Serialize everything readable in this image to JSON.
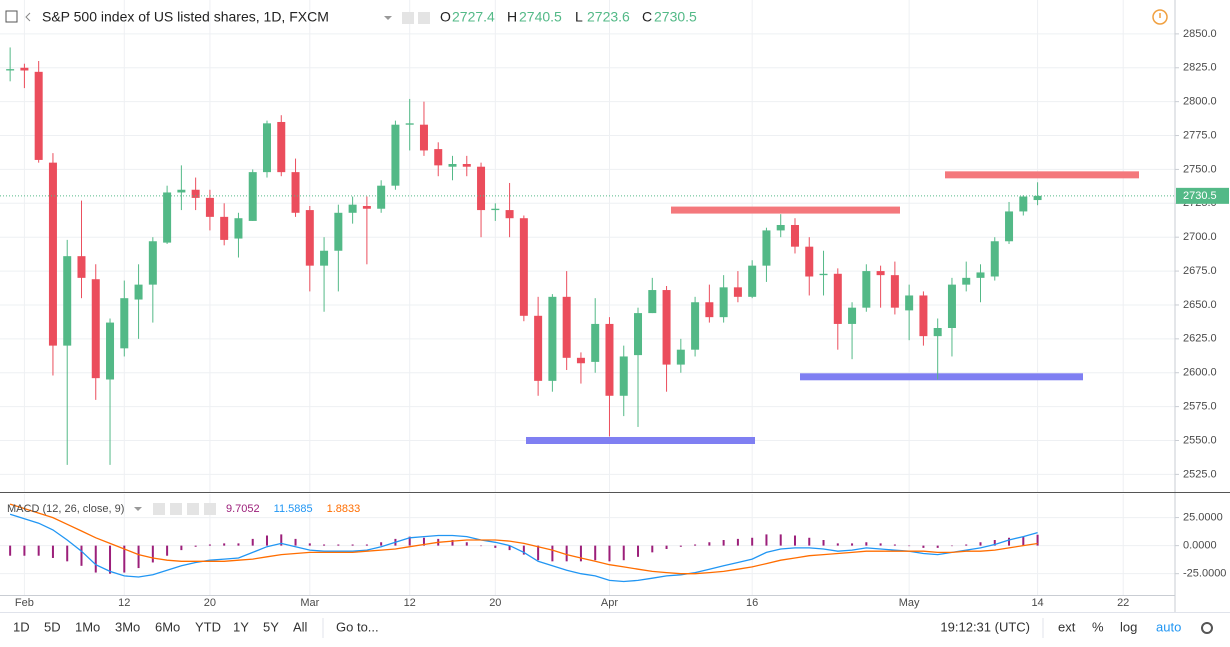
{
  "header": {
    "title": "S&P 500 index of US listed shares, 1D, FXCM",
    "ohlc_labels": [
      "O",
      "H",
      "L",
      "C"
    ],
    "macd_label": "MACD (12, 26, close, 9)"
  },
  "toolbar": {
    "timeframes": [
      "1D",
      "5D",
      "1Mo",
      "3Mo",
      "6Mo",
      "YTD",
      "1Y",
      "5Y",
      "All"
    ],
    "goto": "Go to...",
    "clock": "19:12:31 (UTC)",
    "options": [
      "ext",
      "%",
      "log",
      "auto"
    ]
  },
  "chart_data": [
    {
      "type": "candlestick",
      "up_color": "#53b987",
      "down_color": "#eb4d5c",
      "open": [
        2823,
        2825,
        2822,
        2755,
        2620,
        2686,
        2669,
        2595,
        2618,
        2654,
        2665,
        2696,
        2733,
        2735,
        2729,
        2715,
        2699,
        2712,
        2748,
        2785,
        2748,
        2720,
        2679,
        2690,
        2718,
        2723,
        2721,
        2738,
        2783,
        2783,
        2765,
        2752,
        2754,
        2752,
        2720,
        2720,
        2714,
        2642,
        2594,
        2656,
        2611,
        2608,
        2636,
        2583,
        2613,
        2644,
        2661,
        2606,
        2617,
        2652,
        2641,
        2663,
        2656,
        2679,
        2705,
        2709,
        2693,
        2672,
        2673,
        2636,
        2648,
        2675,
        2672,
        2646,
        2657,
        2627,
        2633,
        2665,
        2670,
        2671,
        2697,
        2719,
        2727.4,
        null,
        null,
        null,
        null,
        null,
        null,
        null,
        null,
        null
      ],
      "high": [
        2840,
        2828,
        2830,
        2762,
        2698,
        2727,
        2680,
        2640,
        2668,
        2680,
        2700,
        2738,
        2753,
        2744,
        2735,
        2725,
        2718,
        2750,
        2786,
        2790,
        2758,
        2723,
        2700,
        2724,
        2730,
        2730,
        2742,
        2786,
        2802,
        2800,
        2770,
        2760,
        2760,
        2755,
        2725,
        2740,
        2716,
        2656,
        2658,
        2675,
        2615,
        2655,
        2641,
        2620,
        2648,
        2670,
        2664,
        2625,
        2656,
        2665,
        2672,
        2675,
        2683,
        2707,
        2717,
        2714,
        2700,
        2690,
        2677,
        2652,
        2680,
        2679,
        2682,
        2665,
        2660,
        2640,
        2670,
        2682,
        2680,
        2700,
        2726,
        2731,
        2740.5,
        null,
        null,
        null,
        null,
        null,
        null,
        null,
        null,
        null
      ],
      "low": [
        2815,
        2810,
        2755,
        2598,
        2532,
        2655,
        2580,
        2532,
        2612,
        2625,
        2637,
        2695,
        2720,
        2720,
        2705,
        2694,
        2685,
        2712,
        2744,
        2745,
        2715,
        2660,
        2645,
        2660,
        2710,
        2680,
        2718,
        2735,
        2764,
        2760,
        2745,
        2742,
        2745,
        2700,
        2712,
        2700,
        2638,
        2583,
        2586,
        2602,
        2592,
        2600,
        2553,
        2568,
        2560,
        2644,
        2586,
        2600,
        2612,
        2637,
        2637,
        2652,
        2655,
        2667,
        2700,
        2688,
        2657,
        2657,
        2617,
        2610,
        2645,
        2648,
        2643,
        2624,
        2620,
        2595,
        2612,
        2660,
        2652,
        2668,
        2695,
        2716,
        2723.6,
        null,
        null,
        null,
        null,
        null,
        null,
        null,
        null,
        null
      ],
      "close": [
        2824,
        2823,
        2757,
        2620,
        2686,
        2670,
        2596,
        2637,
        2655,
        2665,
        2697,
        2733,
        2735,
        2729,
        2715,
        2698,
        2714,
        2748,
        2784,
        2748,
        2718,
        2679,
        2690,
        2718,
        2724,
        2721,
        2738,
        2783,
        2784,
        2764,
        2753,
        2754,
        2752,
        2720,
        2721,
        2714,
        2642,
        2594,
        2656,
        2611,
        2607,
        2636,
        2583,
        2612,
        2644,
        2661,
        2606,
        2617,
        2652,
        2641,
        2663,
        2656,
        2679,
        2705,
        2709,
        2693,
        2671,
        2673,
        2636,
        2648,
        2675,
        2672,
        2648,
        2657,
        2627,
        2633,
        2665,
        2670,
        2674,
        2697,
        2719,
        2730,
        2730.5,
        null,
        null,
        null,
        null,
        null,
        null,
        null,
        null,
        null
      ],
      "ylim": [
        2512,
        2875
      ],
      "yticks": [
        {
          "value": 2525,
          "label": "2525.0"
        },
        {
          "value": 2550,
          "label": "2550.0"
        },
        {
          "value": 2575,
          "label": "2575.0"
        },
        {
          "value": 2600,
          "label": "2600.0"
        },
        {
          "value": 2625,
          "label": "2625.0"
        },
        {
          "value": 2650,
          "label": "2650.0"
        },
        {
          "value": 2675,
          "label": "2675.0"
        },
        {
          "value": 2700,
          "label": "2700.0"
        },
        {
          "value": 2725,
          "label": "2725.0"
        },
        {
          "value": 2750,
          "label": "2750.0"
        },
        {
          "value": 2775,
          "label": "2775.0"
        },
        {
          "value": 2800,
          "label": "2800.0"
        },
        {
          "value": 2825,
          "label": "2825.0"
        },
        {
          "value": 2850,
          "label": "2850.0"
        }
      ],
      "levels": [
        {
          "value": 2746,
          "color": "#f4787c"
        },
        {
          "value": 2720,
          "color": "#f4787c"
        },
        {
          "value": 2597,
          "color": "#7f7ff2"
        },
        {
          "value": 2550,
          "color": "#7f7ff2"
        }
      ],
      "grid": true
    },
    {
      "type": "macd",
      "categories": [
        null,
        "Feb",
        null,
        null,
        null,
        null,
        null,
        null,
        "12",
        null,
        null,
        null,
        null,
        null,
        "20",
        null,
        null,
        null,
        null,
        null,
        null,
        "Mar",
        null,
        null,
        null,
        null,
        null,
        null,
        "12",
        null,
        null,
        null,
        null,
        null,
        "20",
        null,
        null,
        null,
        null,
        null,
        null,
        null,
        "Apr",
        null,
        null,
        null,
        null,
        null,
        null,
        null,
        null,
        null,
        "16",
        null,
        null,
        null,
        null,
        null,
        null,
        null,
        null,
        null,
        null,
        "May",
        null,
        null,
        null,
        null,
        null,
        null,
        null,
        null,
        "14",
        null,
        null,
        null,
        null,
        null,
        "22",
        null,
        null,
        null
      ],
      "series": [
        {
          "style": "histogram",
          "color": "#9c1f7a",
          "values": [
            -9,
            -9,
            -9,
            -11,
            -14,
            -18,
            -24,
            -25,
            -24,
            -20,
            -15,
            -9,
            -4,
            -1,
            1,
            2,
            2,
            6,
            9,
            10,
            6,
            2,
            1,
            1,
            1,
            1,
            3,
            6,
            8,
            7,
            6,
            5,
            3,
            0,
            -2,
            -4,
            -8,
            -13,
            -14,
            -14,
            -14,
            -13,
            -14,
            -13,
            -10,
            -6,
            -3,
            -1,
            1,
            3,
            5,
            6,
            7,
            10,
            10,
            9,
            7,
            5,
            2,
            2,
            3,
            2,
            1,
            0,
            -2,
            -2,
            0,
            1,
            3,
            5,
            7,
            8,
            9.7052,
            null,
            null,
            null,
            null,
            null,
            null,
            null,
            null,
            null
          ]
        },
        {
          "style": "line",
          "color": "#2196f3",
          "values": [
            28,
            24,
            20,
            14,
            5,
            -5,
            -17,
            -23,
            -27,
            -28,
            -26,
            -22,
            -18,
            -15,
            -13,
            -12,
            -11,
            -6,
            -1,
            2,
            -1,
            -4,
            -5,
            -5,
            -5,
            -4,
            -1,
            3,
            7,
            8,
            9,
            9,
            8,
            5,
            3,
            0,
            -6,
            -14,
            -18,
            -22,
            -25,
            -27,
            -31,
            -32,
            -31,
            -29,
            -27,
            -26,
            -24,
            -21,
            -18,
            -15,
            -12,
            -6,
            -3,
            -2,
            -2,
            -3,
            -5,
            -4,
            -2,
            -3,
            -4,
            -5,
            -7,
            -8,
            -6,
            -4,
            -2,
            1,
            5,
            8,
            11.5885,
            null,
            null,
            null,
            null,
            null,
            null,
            null,
            null,
            null
          ]
        },
        {
          "style": "line",
          "color": "#ff6d00",
          "values": [
            37,
            33,
            29,
            25,
            19,
            13,
            7,
            2,
            -3,
            -8,
            -11,
            -13,
            -14,
            -14,
            -14,
            -14,
            -13,
            -12,
            -10,
            -8,
            -7,
            -6,
            -6,
            -6,
            -6,
            -5,
            -4,
            -3,
            -1,
            1,
            3,
            4,
            5,
            5,
            5,
            4,
            2,
            -1,
            -4,
            -8,
            -11,
            -14,
            -17,
            -19,
            -21,
            -23,
            -24,
            -25,
            -25,
            -24,
            -23,
            -21,
            -19,
            -16,
            -13,
            -11,
            -9,
            -8,
            -7,
            -6,
            -5,
            -5,
            -5,
            -5,
            -5,
            -6,
            -6,
            -5,
            -5,
            -4,
            -2,
            0,
            1.8833,
            null,
            null,
            null,
            null,
            null,
            null,
            null,
            null,
            null
          ]
        }
      ],
      "ylim": [
        -44,
        46
      ],
      "yticks": [
        {
          "value": -25,
          "label": "-25.0000"
        },
        {
          "value": 0,
          "label": "0.0000"
        },
        {
          "value": 25,
          "label": "25.0000"
        }
      ],
      "grid": true
    }
  ]
}
